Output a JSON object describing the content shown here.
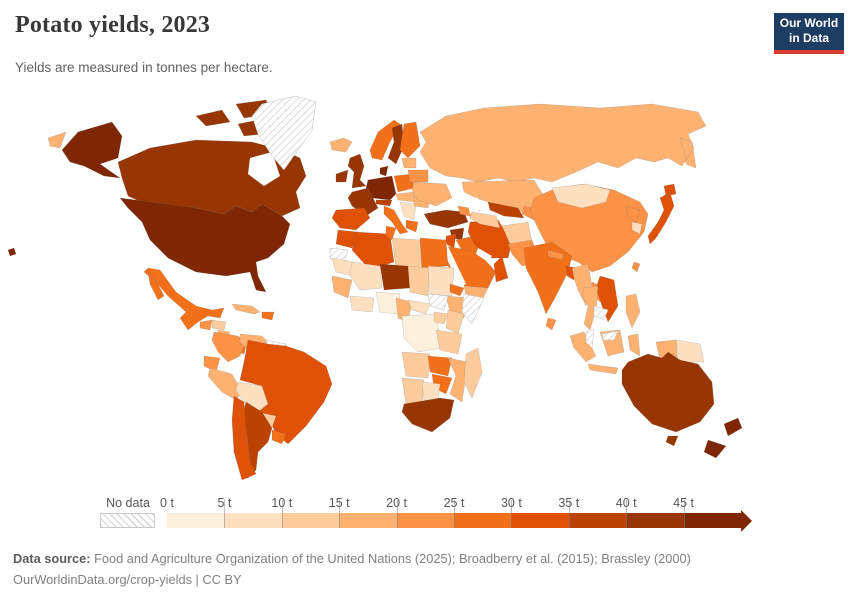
{
  "header": {
    "title": "Potato yields, 2023",
    "subtitle": "Yields are measured in tonnes per hectare.",
    "logo": {
      "line1": "Our World",
      "line2": "in Data",
      "bg_color": "#1d3d63",
      "accent_color": "#d93a34"
    }
  },
  "legend": {
    "no_data_label": "No data",
    "tick_labels": [
      "0 t",
      "5 t",
      "10 t",
      "15 t",
      "20 t",
      "25 t",
      "30 t",
      "35 t",
      "40 t",
      "45 t"
    ],
    "bin_colors": [
      "#fdf0dd",
      "#fee0c1",
      "#fdcc9c",
      "#fdb272",
      "#fb9245",
      "#f3701b",
      "#df5106",
      "#bc4202",
      "#983603",
      "#7f2704"
    ],
    "no_data_pattern": "diagonal-hatch"
  },
  "footer": {
    "source_label": "Data source:",
    "source_text": " Food and Agriculture Organization of the United Nations (2025); Broadberry et al. (2015); Brassley (2000)",
    "license_line": "OurWorldinData.org/crop-yields | CC BY"
  },
  "chart_data": {
    "type": "heatmap",
    "subtype": "choropleth-world-map",
    "title": "Potato yields, 2023",
    "unit": "tonnes per hectare",
    "bin_ranges": [
      "0-5",
      "5-10",
      "10-15",
      "15-20",
      "20-25",
      "25-30",
      "30-35",
      "35-40",
      "40-45",
      "45+"
    ],
    "legend_position": "bottom",
    "regions": {
      "united-states": 9,
      "hawaii": 9,
      "alaska": 9,
      "canada": 8,
      "greenland": "no-data",
      "iceland": 3,
      "chukotka-russia": 3,
      "mexico": 5,
      "guatemala": 4,
      "honduras": 2,
      "nicaragua": 3,
      "costa-rica-panama": 5,
      "cuba": 3,
      "hispaniola": 5,
      "colombia": 4,
      "venezuela": 3,
      "guyanas": "no-data",
      "ecuador": 4,
      "peru": 3,
      "bolivia": 1,
      "brazil": 6,
      "paraguay": 2,
      "uruguay": 5,
      "chile": 6,
      "argentina": 7,
      "ireland": 8,
      "united-kingdom": 8,
      "norway": 5,
      "sweden": 8,
      "finland": 5,
      "denmark": 9,
      "germany-benelux": 9,
      "france": 8,
      "iberia": 6,
      "italy": 5,
      "alps-austria": 7,
      "poland": 5,
      "czechia-hungary": 3,
      "balkans": 1,
      "greece": 5,
      "romania": 3,
      "ukraine": 3,
      "belarus": 4,
      "baltics": 3,
      "russia": 3,
      "turkey": 8,
      "syria": 8,
      "iraq": 5,
      "iran": 6,
      "saudi-arabia": 5,
      "yemen": 3,
      "oman": 6,
      "jordan-israel": 6,
      "caucasus": 4,
      "kazakhstan": 3,
      "uzbekistan": 7,
      "turkmenistan": 2,
      "kyrgyzstan-tajikistan": 4,
      "afghanistan": 2,
      "pakistan": 4,
      "india": 5,
      "nepal": 4,
      "bangladesh": 6,
      "sri-lanka": 4,
      "china": 4,
      "mongolia": 1,
      "north-korea": 4,
      "south-korea": 1,
      "japan": 6,
      "taiwan": 4,
      "myanmar": 3,
      "thailand": 3,
      "laos": 4,
      "vietnam": 6,
      "cambodia": "no-data",
      "malaysia": "no-data",
      "indonesia": 3,
      "papua-new-guinea": 1,
      "philippines": 3,
      "morocco": 6,
      "western-sahara": "no-data",
      "algeria": 6,
      "tunisia": 5,
      "libya": 2,
      "egypt": 5,
      "mauritania": 1,
      "mali": 1,
      "niger": 8,
      "chad": 2,
      "sudan": 1,
      "eritrea": 5,
      "ethiopia": 3,
      "somalia": "no-data",
      "south-sudan": "no-data",
      "senegal-guinea": 3,
      "ivory-coast-ghana": 1,
      "nigeria": 0,
      "cameroon": 3,
      "central-african-republic": 1,
      "dr-congo": 0,
      "uganda-rwanda": 2,
      "kenya": 2,
      "tanzania": 2,
      "angola": 2,
      "zambia": 5,
      "malawi-mozambique": 3,
      "zimbabwe": 5,
      "namibia": 2,
      "botswana": 1,
      "south-africa": 8,
      "madagascar": 2,
      "australia": 8,
      "new-zealand": 9
    }
  }
}
